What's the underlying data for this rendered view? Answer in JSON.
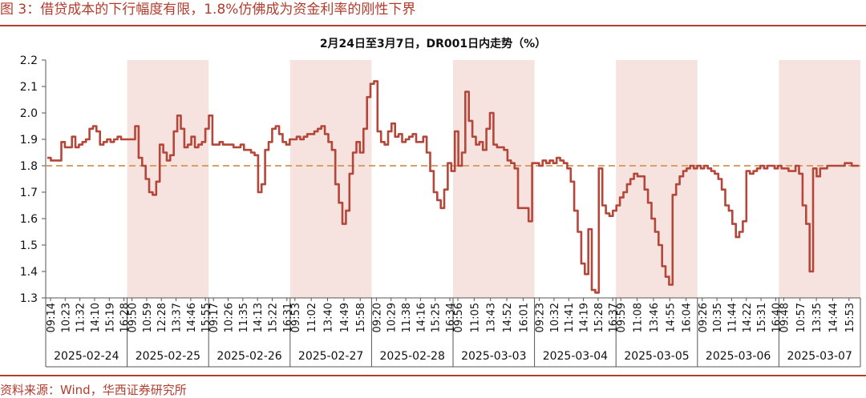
{
  "figure_title": "图 3：借贷成本的下行幅度有限，1.8%仿佛成为资金利率的刚性下界",
  "source": "资料来源：Wind，华西证券研究所",
  "colors": {
    "brand": "#b23c2d",
    "line": "#b5473a",
    "shade": "#f6e3e0",
    "reference": "#d9a066"
  },
  "chart_data": {
    "type": "line",
    "title": "2月24日至3月7日，DR001日内走势（%）",
    "xlabel": "",
    "ylabel": "",
    "ylim": [
      1.3,
      2.2
    ],
    "yticks": [
      "1.3",
      "1.4",
      "1.5",
      "1.6",
      "1.7",
      "1.8",
      "1.9",
      "2.0",
      "2.1",
      "2.2"
    ],
    "reference_line": 1.8,
    "days": [
      {
        "date": "2025-02-24",
        "shaded": false,
        "ticks": [
          "09:14",
          "10:23",
          "11:32",
          "14:10",
          "15:19",
          "16:28"
        ]
      },
      {
        "date": "2025-02-25",
        "shaded": true,
        "ticks": [
          "09:50",
          "10:59",
          "12:28",
          "13:37",
          "14:46",
          "15:55"
        ]
      },
      {
        "date": "2025-02-26",
        "shaded": false,
        "ticks": [
          "09:17",
          "10:26",
          "11:35",
          "14:13",
          "15:22",
          "16:31"
        ]
      },
      {
        "date": "2025-02-27",
        "shaded": true,
        "ticks": [
          "09:53",
          "11:02",
          "13:40",
          "14:49",
          "15:58"
        ]
      },
      {
        "date": "2025-02-28",
        "shaded": false,
        "ticks": [
          "09:20",
          "10:29",
          "11:38",
          "14:16",
          "15:25",
          "16:34"
        ]
      },
      {
        "date": "2025-03-03",
        "shaded": true,
        "ticks": [
          "09:56",
          "11:05",
          "13:43",
          "14:52",
          "16:01"
        ]
      },
      {
        "date": "2025-03-04",
        "shaded": false,
        "ticks": [
          "09:23",
          "10:32",
          "11:41",
          "14:19",
          "15:28",
          "16:37"
        ]
      },
      {
        "date": "2025-03-05",
        "shaded": true,
        "ticks": [
          "09:59",
          "11:08",
          "13:46",
          "14:55",
          "16:04"
        ]
      },
      {
        "date": "2025-03-06",
        "shaded": false,
        "ticks": [
          "09:26",
          "10:35",
          "11:44",
          "14:22",
          "15:31",
          "16:40"
        ]
      },
      {
        "date": "2025-03-07",
        "shaded": true,
        "ticks": [
          "09:48",
          "10:57",
          "13:35",
          "14:44",
          "15:53"
        ]
      }
    ],
    "series": [
      {
        "values": [
          1.83,
          1.82,
          1.82,
          1.82,
          1.89,
          1.87,
          1.87,
          1.91,
          1.87,
          1.88,
          1.89,
          1.9,
          1.94,
          1.95,
          1.93,
          1.88,
          1.89,
          1.9,
          1.89,
          1.9,
          1.91,
          1.9,
          1.9,
          1.9,
          1.9,
          1.95,
          1.83,
          1.8,
          1.75,
          1.7,
          1.69,
          1.74,
          1.88,
          1.85,
          1.82,
          1.84,
          1.93,
          1.99,
          1.94,
          1.87,
          1.88,
          1.91,
          1.87,
          1.88,
          1.89,
          1.94,
          1.99,
          1.88,
          1.88,
          1.89,
          1.88,
          1.88,
          1.88,
          1.87,
          1.87,
          1.88,
          1.86,
          1.86,
          1.85,
          1.84,
          1.7,
          1.73,
          1.86,
          1.89,
          1.94,
          1.95,
          1.92,
          1.89,
          1.88,
          1.9,
          1.9,
          1.91,
          1.9,
          1.91,
          1.92,
          1.92,
          1.93,
          1.94,
          1.95,
          1.92,
          1.89,
          1.86,
          1.73,
          1.66,
          1.58,
          1.63,
          1.77,
          1.85,
          1.89,
          1.85,
          1.94,
          2.06,
          2.11,
          2.12,
          1.93,
          1.89,
          1.88,
          1.93,
          1.96,
          1.91,
          1.92,
          1.89,
          1.9,
          1.91,
          1.92,
          1.89,
          1.89,
          1.91,
          1.85,
          1.78,
          1.7,
          1.67,
          1.64,
          1.71,
          1.81,
          1.78,
          1.93,
          1.8,
          1.85,
          2.08,
          1.97,
          1.91,
          1.88,
          1.89,
          1.86,
          1.94,
          2.0,
          1.88,
          1.87,
          1.87,
          1.86,
          1.82,
          1.81,
          1.79,
          1.64,
          1.64,
          1.64,
          1.59,
          1.81,
          1.81,
          1.8,
          1.82,
          1.81,
          1.82,
          1.81,
          1.83,
          1.82,
          1.81,
          1.79,
          1.74,
          1.63,
          1.55,
          1.43,
          1.39,
          1.56,
          1.33,
          1.32,
          1.79,
          1.65,
          1.62,
          1.61,
          1.63,
          1.65,
          1.68,
          1.7,
          1.73,
          1.75,
          1.77,
          1.76,
          1.76,
          1.71,
          1.66,
          1.6,
          1.55,
          1.5,
          1.42,
          1.38,
          1.35,
          1.69,
          1.73,
          1.76,
          1.78,
          1.79,
          1.8,
          1.79,
          1.8,
          1.79,
          1.8,
          1.79,
          1.78,
          1.77,
          1.75,
          1.71,
          1.65,
          1.63,
          1.58,
          1.53,
          1.55,
          1.59,
          1.78,
          1.77,
          1.78,
          1.79,
          1.8,
          1.79,
          1.8,
          1.8,
          1.79,
          1.8,
          1.79,
          1.79,
          1.78,
          1.78,
          1.8,
          1.77,
          1.65,
          1.58,
          1.4,
          1.79,
          1.76,
          1.79,
          1.79,
          1.8,
          1.8,
          1.8,
          1.8,
          1.8,
          1.81,
          1.81,
          1.8,
          1.8,
          1.8
        ]
      }
    ]
  }
}
